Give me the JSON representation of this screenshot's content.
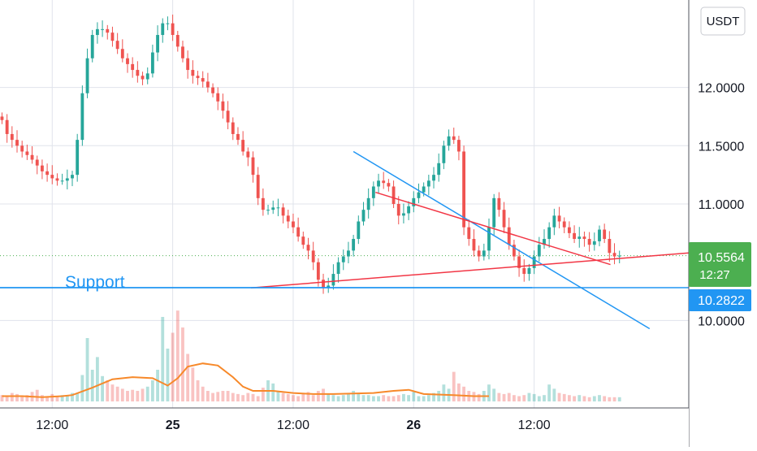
{
  "currency_button": {
    "label": "USDT"
  },
  "support_label": "Support",
  "chart_data": {
    "type": "candlestick",
    "y_axis": {
      "ticks": [
        "12.0000",
        "11.5000",
        "11.0000",
        "10.0000"
      ],
      "tick_values": [
        12.0,
        11.5,
        11.0,
        10.0
      ],
      "ylim": [
        9.25,
        12.75
      ]
    },
    "x_axis": {
      "ticks": [
        "12:00",
        "25",
        "12:00",
        "26",
        "12:00"
      ],
      "tick_hours": [
        12,
        24,
        36,
        48,
        60
      ],
      "xlim_hours": [
        6.8,
        75.4
      ]
    },
    "price_badge": {
      "price": "10.5564",
      "countdown": "12:27",
      "color": "#4CAF50"
    },
    "support_badge": {
      "price": "10.2822",
      "color": "#2196F3"
    },
    "current_price": 10.5564,
    "support_level": 10.2822,
    "candles_hourly_close": [
      11.72,
      11.6,
      11.55,
      11.5,
      11.45,
      11.42,
      11.38,
      11.33,
      11.28,
      11.25,
      11.22,
      11.2,
      11.2,
      11.22,
      11.25,
      11.55,
      11.95,
      12.25,
      12.45,
      12.5,
      12.5,
      12.47,
      12.4,
      12.33,
      12.25,
      12.2,
      12.15,
      12.1,
      12.07,
      12.12,
      12.3,
      12.45,
      12.55,
      12.55,
      12.45,
      12.35,
      12.25,
      12.15,
      12.1,
      12.08,
      12.05,
      12.0,
      11.95,
      11.88,
      11.8,
      11.7,
      11.6,
      11.55,
      11.45,
      11.4,
      11.25,
      11.05,
      10.95,
      10.95,
      10.97,
      10.97,
      10.9,
      10.85,
      10.8,
      10.72,
      10.65,
      10.6,
      10.5,
      10.35,
      10.28,
      10.3,
      10.4,
      10.5,
      10.55,
      10.6,
      10.7,
      10.85,
      10.95,
      11.05,
      11.15,
      11.2,
      11.18,
      11.15,
      11.0,
      10.9,
      10.92,
      10.98,
      11.05,
      11.1,
      11.15,
      11.2,
      11.25,
      11.35,
      11.5,
      11.58,
      11.55,
      11.45,
      10.8,
      10.7,
      10.6,
      10.55,
      10.6,
      10.8,
      11.05,
      10.95,
      10.8,
      10.65,
      10.55,
      10.45,
      10.4,
      10.45,
      10.55,
      10.65,
      10.7,
      10.8,
      10.9,
      10.85,
      10.8,
      10.75,
      10.7,
      10.72,
      10.7,
      10.65,
      10.68,
      10.78,
      10.7,
      10.58,
      10.55,
      10.5564
    ],
    "candles_start_hour": 7,
    "candles_step_hours": 0.5,
    "volume_bars_relative": [
      0.06,
      0.05,
      0.08,
      0.07,
      0.05,
      0.06,
      0.09,
      0.11,
      0.06,
      0.05,
      0.07,
      0.05,
      0.06,
      0.05,
      0.08,
      0.08,
      0.25,
      0.6,
      0.3,
      0.42,
      0.24,
      0.2,
      0.16,
      0.14,
      0.12,
      0.1,
      0.11,
      0.1,
      0.12,
      0.14,
      0.2,
      0.3,
      0.8,
      0.5,
      0.65,
      0.86,
      0.7,
      0.45,
      0.32,
      0.2,
      0.14,
      0.1,
      0.08,
      0.09,
      0.1,
      0.1,
      0.08,
      0.07,
      0.06,
      0.08,
      0.07,
      0.05,
      0.13,
      0.2,
      0.17,
      0.1,
      0.08,
      0.07,
      0.06,
      0.05,
      0.07,
      0.09,
      0.06,
      0.1,
      0.12,
      0.07,
      0.06,
      0.05,
      0.06,
      0.07,
      0.1,
      0.08,
      0.06,
      0.06,
      0.05,
      0.05,
      0.06,
      0.05,
      0.05,
      0.06,
      0.07,
      0.06,
      0.09,
      0.05,
      0.05,
      0.06,
      0.08,
      0.1,
      0.16,
      0.12,
      0.28,
      0.17,
      0.14,
      0.1,
      0.09,
      0.07,
      0.1,
      0.16,
      0.12,
      0.08,
      0.07,
      0.08,
      0.06,
      0.05,
      0.06,
      0.08,
      0.07,
      0.05,
      0.06,
      0.16,
      0.12,
      0.08,
      0.07,
      0.06,
      0.05,
      0.06,
      0.05,
      0.04,
      0.05,
      0.06,
      0.05,
      0.04,
      0.04,
      0.04
    ],
    "volume_ma_relative": [
      [
        7,
        0.05
      ],
      [
        9,
        0.05
      ],
      [
        11,
        0.04
      ],
      [
        13,
        0.05
      ],
      [
        14,
        0.06
      ],
      [
        16,
        0.13
      ],
      [
        18,
        0.21
      ],
      [
        20,
        0.23
      ],
      [
        22,
        0.22
      ],
      [
        23.5,
        0.15
      ],
      [
        24.5,
        0.22
      ],
      [
        25.5,
        0.33
      ],
      [
        27,
        0.36
      ],
      [
        28.5,
        0.34
      ],
      [
        30,
        0.23
      ],
      [
        31,
        0.14
      ],
      [
        32,
        0.1
      ],
      [
        34,
        0.1
      ],
      [
        36,
        0.08
      ],
      [
        38,
        0.07
      ],
      [
        40,
        0.07
      ],
      [
        44,
        0.08
      ],
      [
        46,
        0.1
      ],
      [
        47.5,
        0.11
      ],
      [
        49,
        0.07
      ],
      [
        52,
        0.06
      ],
      [
        54,
        0.05
      ],
      [
        55.5,
        0.05
      ]
    ],
    "trendlines": [
      {
        "name": "descending-resistance",
        "color": "#2196F3",
        "points": [
          [
            42.0,
            11.45
          ],
          [
            71.5,
            9.93
          ]
        ]
      },
      {
        "name": "wedge-upper",
        "color": "#F23645",
        "points": [
          [
            44.2,
            11.1
          ],
          [
            67.6,
            10.48
          ]
        ]
      },
      {
        "name": "wedge-lower",
        "color": "#F23645",
        "points": [
          [
            31.8,
            10.28
          ],
          [
            75.4,
            10.58
          ]
        ]
      },
      {
        "name": "support-level",
        "color": "#2196F3",
        "points": [
          [
            6.8,
            10.2822
          ],
          [
            59.8,
            10.2822
          ]
        ]
      }
    ],
    "colors": {
      "up": "#26A69A",
      "down": "#EF5350",
      "volume_ma": "#F7892A",
      "grid": "#E0E3EB"
    }
  }
}
